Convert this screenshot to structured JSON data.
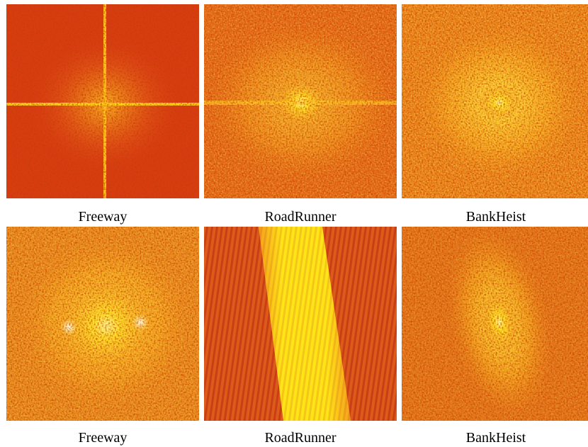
{
  "figure": {
    "panels": [
      {
        "caption": "Freeway"
      },
      {
        "caption": "RoadRunner"
      },
      {
        "caption": "BankHeist"
      },
      {
        "caption": "Freeway"
      },
      {
        "caption": "RoadRunner"
      },
      {
        "caption": "BankHeist"
      }
    ]
  }
}
